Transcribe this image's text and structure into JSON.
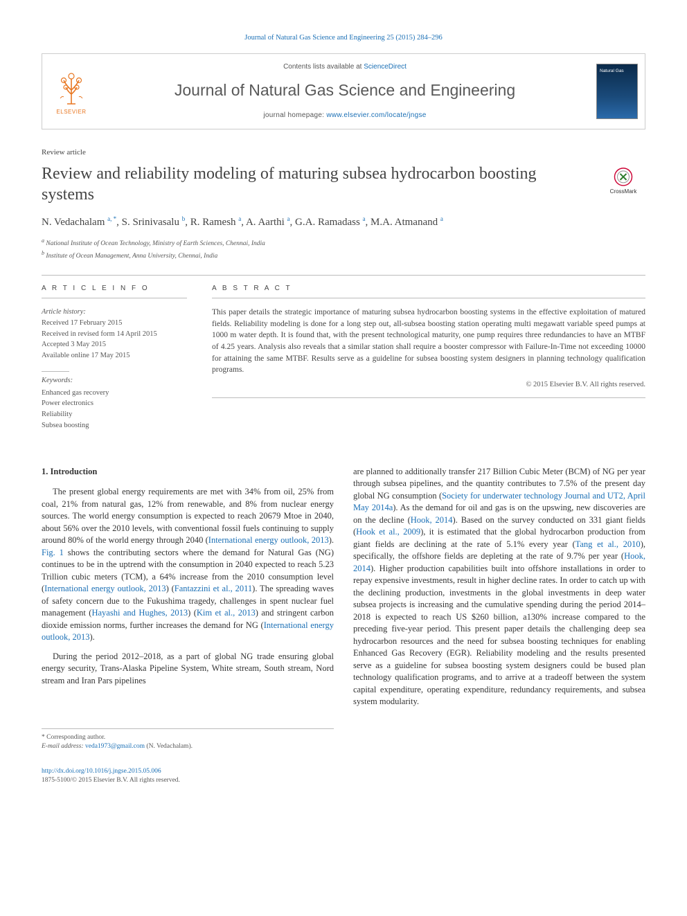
{
  "citation": {
    "prefix": "Journal of Natural Gas Science and Engineering 25 (2015) 284–296",
    "link_text": ""
  },
  "header": {
    "contents_prefix": "Contents lists available at ",
    "contents_link": "ScienceDirect",
    "journal_name": "Journal of Natural Gas Science and Engineering",
    "homepage_prefix": "journal homepage: ",
    "homepage_link": "www.elsevier.com/locate/jngse",
    "elsevier_label": "ELSEVIER",
    "cover_text": "Natural Gas"
  },
  "article_type": "Review article",
  "title": "Review and reliability modeling of maturing subsea hydrocarbon boosting systems",
  "crossmark_label": "CrossMark",
  "authors_html": "N. Vedachalam <sup>a, *</sup>, S. Srinivasalu <sup>b</sup>, R. Ramesh <sup>a</sup>, A. Aarthi <sup>a</sup>, G.A. Ramadass <sup>a</sup>, M.A. Atmanand <sup>a</sup>",
  "affiliations": {
    "a": "National Institute of Ocean Technology, Ministry of Earth Sciences, Chennai, India",
    "b": "Institute of Ocean Management, Anna University, Chennai, India"
  },
  "article_info": {
    "heading": "A R T I C L E   I N F O",
    "history_label": "Article history:",
    "received": "Received 17 February 2015",
    "revised": "Received in revised form 14 April 2015",
    "accepted": "Accepted 3 May 2015",
    "online": "Available online 17 May 2015",
    "keywords_label": "Keywords:",
    "keywords": [
      "Enhanced gas recovery",
      "Power electronics",
      "Reliability",
      "Subsea boosting"
    ]
  },
  "abstract": {
    "heading": "A B S T R A C T",
    "text": "This paper details the strategic importance of maturing subsea hydrocarbon boosting systems in the effective exploitation of matured fields. Reliability modeling is done for a long step out, all-subsea boosting station operating multi megawatt variable speed pumps at 1000 m water depth. It is found that, with the present technological maturity, one pump requires three redundancies to have an MTBF of 4.25 years. Analysis also reveals that a similar station shall require a booster compressor with Failure-In-Time not exceeding 10000 for attaining the same MTBF. Results serve as a guideline for subsea boosting system designers in planning technology qualification programs.",
    "copyright": "© 2015 Elsevier B.V. All rights reserved."
  },
  "body": {
    "intro_heading": "1. Introduction",
    "p1_a": "The present global energy requirements are met with 34% from oil, 25% from coal, 21% from natural gas, 12% from renewable, and 8% from nuclear energy sources. The world energy consumption is expected to reach 20679 Mtoe in 2040, about 56% over the 2010 levels, with conventional fossil fuels continuing to supply around 80% of the world energy through 2040 (",
    "p1_l1": "International energy outlook, 2013",
    "p1_b": "). ",
    "p1_l2": "Fig. 1",
    "p1_c": " shows the contributing sectors where the demand for Natural Gas (NG) continues to be in the uptrend with the consumption in 2040 expected to reach 5.23 Trillion cubic meters (TCM), a 64% increase from the 2010 consumption level (",
    "p1_l3": "International energy outlook, 2013",
    "p1_d": ") (",
    "p1_l4": "Fantazzini et al., 2011",
    "p1_e": "). The spreading waves of safety concern due to the Fukushima tragedy, challenges in spent nuclear fuel management (",
    "p1_l5": "Hayashi and Hughes, 2013",
    "p1_f": ") (",
    "p1_l6": "Kim et al., 2013",
    "p1_g": ") and stringent carbon dioxide emission norms, further increases the demand for NG (",
    "p1_l7": "International energy outlook, 2013",
    "p1_h": ").",
    "p2": "During the period 2012–2018, as a part of global NG trade ensuring global energy security, Trans-Alaska Pipeline System, White stream, South stream, Nord stream and Iran Pars pipelines",
    "p3_a": "are planned to additionally transfer 217 Billion Cubic Meter (BCM) of NG per year through subsea pipelines, and the quantity contributes to 7.5% of the present day global NG consumption (",
    "p3_l1": "Society for underwater technology Journal and UT2, April May 2014a",
    "p3_b": "). As the demand for oil and gas is on the upswing, new discoveries are on the decline (",
    "p3_l2": "Hook, 2014",
    "p3_c": "). Based on the survey conducted on 331 giant fields (",
    "p3_l3": "Hook et al., 2009",
    "p3_d": "), it is estimated that the global hydrocarbon production from giant fields are declining at the rate of 5.1% every year (",
    "p3_l4": "Tang et al., 2010",
    "p3_e": "), specifically, the offshore fields are depleting at the rate of 9.7% per year (",
    "p3_l5": "Hook, 2014",
    "p3_f": "). Higher production capabilities built into offshore installations in order to repay expensive investments, result in higher decline rates. In order to catch up with the declining production, investments in the global investments in deep water subsea projects is increasing and the cumulative spending during the period 2014–2018 is expected to reach US $260 billion, a130% increase compared to the preceding five-year period. This present paper details the challenging deep sea hydrocarbon resources and the need for subsea boosting techniques for enabling Enhanced Gas Recovery (EGR). Reliability modeling and the results presented serve as a guideline for subsea boosting system designers could be bused plan technology qualification programs, and to arrive at a tradeoff between the system capital expenditure, operating expenditure, redundancy requirements, and subsea system modularity."
  },
  "footer": {
    "corresponding": "* Corresponding author.",
    "email_label": "E-mail address: ",
    "email": "veda1973@gmail.com",
    "email_suffix": " (N. Vedachalam).",
    "doi": "http://dx.doi.org/10.1016/j.jngse.2015.05.006",
    "issn": "1875-5100/© 2015 Elsevier B.V. All rights reserved."
  },
  "colors": {
    "link": "#1a6fb5",
    "text": "#333333",
    "muted": "#555555",
    "rule": "#bbbbbb",
    "elsevier_orange": "#e87722",
    "cover_gradient_top": "#0a2a4a",
    "cover_gradient_bottom": "#2a6aaa"
  }
}
